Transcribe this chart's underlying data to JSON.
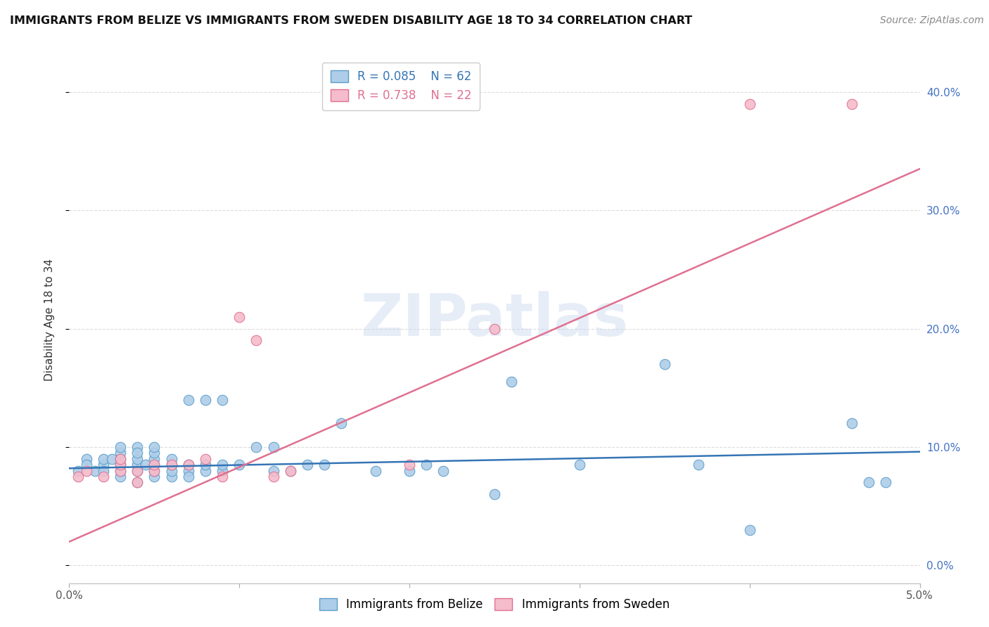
{
  "title": "IMMIGRANTS FROM BELIZE VS IMMIGRANTS FROM SWEDEN DISABILITY AGE 18 TO 34 CORRELATION CHART",
  "source": "Source: ZipAtlas.com",
  "ylabel": "Disability Age 18 to 34",
  "xlim": [
    0.0,
    0.05
  ],
  "ylim": [
    -0.015,
    0.43
  ],
  "yticks": [
    0.0,
    0.1,
    0.2,
    0.3,
    0.4
  ],
  "ytick_labels": [
    "0.0%",
    "10.0%",
    "20.0%",
    "30.0%",
    "40.0%"
  ],
  "xticks": [
    0.0,
    0.01,
    0.02,
    0.03,
    0.04,
    0.05
  ],
  "xtick_labels": [
    "0.0%",
    "",
    "",
    "",
    "",
    "5.0%"
  ],
  "belize_color": "#aecde8",
  "belize_edge_color": "#5b9ec9",
  "sweden_color": "#f5bccb",
  "sweden_edge_color": "#e0708e",
  "belize_line_color": "#3575b5",
  "sweden_line_color": "#e07090",
  "legend_belize_r": "R = 0.085",
  "legend_belize_n": "N = 62",
  "legend_sweden_r": "R = 0.738",
  "legend_sweden_n": "N = 22",
  "belize_scatter_x": [
    0.0005,
    0.001,
    0.001,
    0.0015,
    0.002,
    0.002,
    0.002,
    0.0025,
    0.003,
    0.003,
    0.003,
    0.003,
    0.003,
    0.003,
    0.004,
    0.004,
    0.004,
    0.004,
    0.004,
    0.004,
    0.0045,
    0.005,
    0.005,
    0.005,
    0.005,
    0.005,
    0.005,
    0.006,
    0.006,
    0.006,
    0.006,
    0.007,
    0.007,
    0.007,
    0.007,
    0.008,
    0.008,
    0.008,
    0.009,
    0.009,
    0.009,
    0.01,
    0.011,
    0.012,
    0.012,
    0.013,
    0.014,
    0.015,
    0.016,
    0.018,
    0.02,
    0.021,
    0.022,
    0.025,
    0.026,
    0.03,
    0.035,
    0.037,
    0.04,
    0.046,
    0.047,
    0.048
  ],
  "belize_scatter_y": [
    0.08,
    0.09,
    0.085,
    0.08,
    0.085,
    0.09,
    0.08,
    0.09,
    0.075,
    0.08,
    0.085,
    0.09,
    0.095,
    0.1,
    0.07,
    0.08,
    0.085,
    0.09,
    0.1,
    0.095,
    0.085,
    0.075,
    0.08,
    0.085,
    0.09,
    0.095,
    0.1,
    0.075,
    0.08,
    0.085,
    0.09,
    0.08,
    0.085,
    0.14,
    0.075,
    0.08,
    0.085,
    0.14,
    0.08,
    0.085,
    0.14,
    0.085,
    0.1,
    0.08,
    0.1,
    0.08,
    0.085,
    0.085,
    0.12,
    0.08,
    0.08,
    0.085,
    0.08,
    0.06,
    0.155,
    0.085,
    0.17,
    0.085,
    0.03,
    0.12,
    0.07,
    0.07
  ],
  "sweden_scatter_x": [
    0.0005,
    0.001,
    0.002,
    0.003,
    0.003,
    0.003,
    0.004,
    0.004,
    0.005,
    0.005,
    0.006,
    0.007,
    0.008,
    0.009,
    0.01,
    0.011,
    0.012,
    0.013,
    0.02,
    0.025,
    0.04,
    0.046
  ],
  "sweden_scatter_y": [
    0.075,
    0.08,
    0.075,
    0.08,
    0.085,
    0.09,
    0.07,
    0.08,
    0.08,
    0.085,
    0.085,
    0.085,
    0.09,
    0.075,
    0.21,
    0.19,
    0.075,
    0.08,
    0.085,
    0.2,
    0.39,
    0.39
  ],
  "belize_trendline_x": [
    0.0,
    0.05
  ],
  "belize_trendline_y": [
    0.082,
    0.096
  ],
  "sweden_trendline_x": [
    0.0,
    0.05
  ],
  "sweden_trendline_y": [
    0.02,
    0.335
  ],
  "grid_color": "#dddddd",
  "background_color": "#ffffff",
  "title_fontsize": 11.5,
  "axis_label_fontsize": 11,
  "tick_fontsize": 11,
  "legend_fontsize": 12,
  "source_fontsize": 10
}
